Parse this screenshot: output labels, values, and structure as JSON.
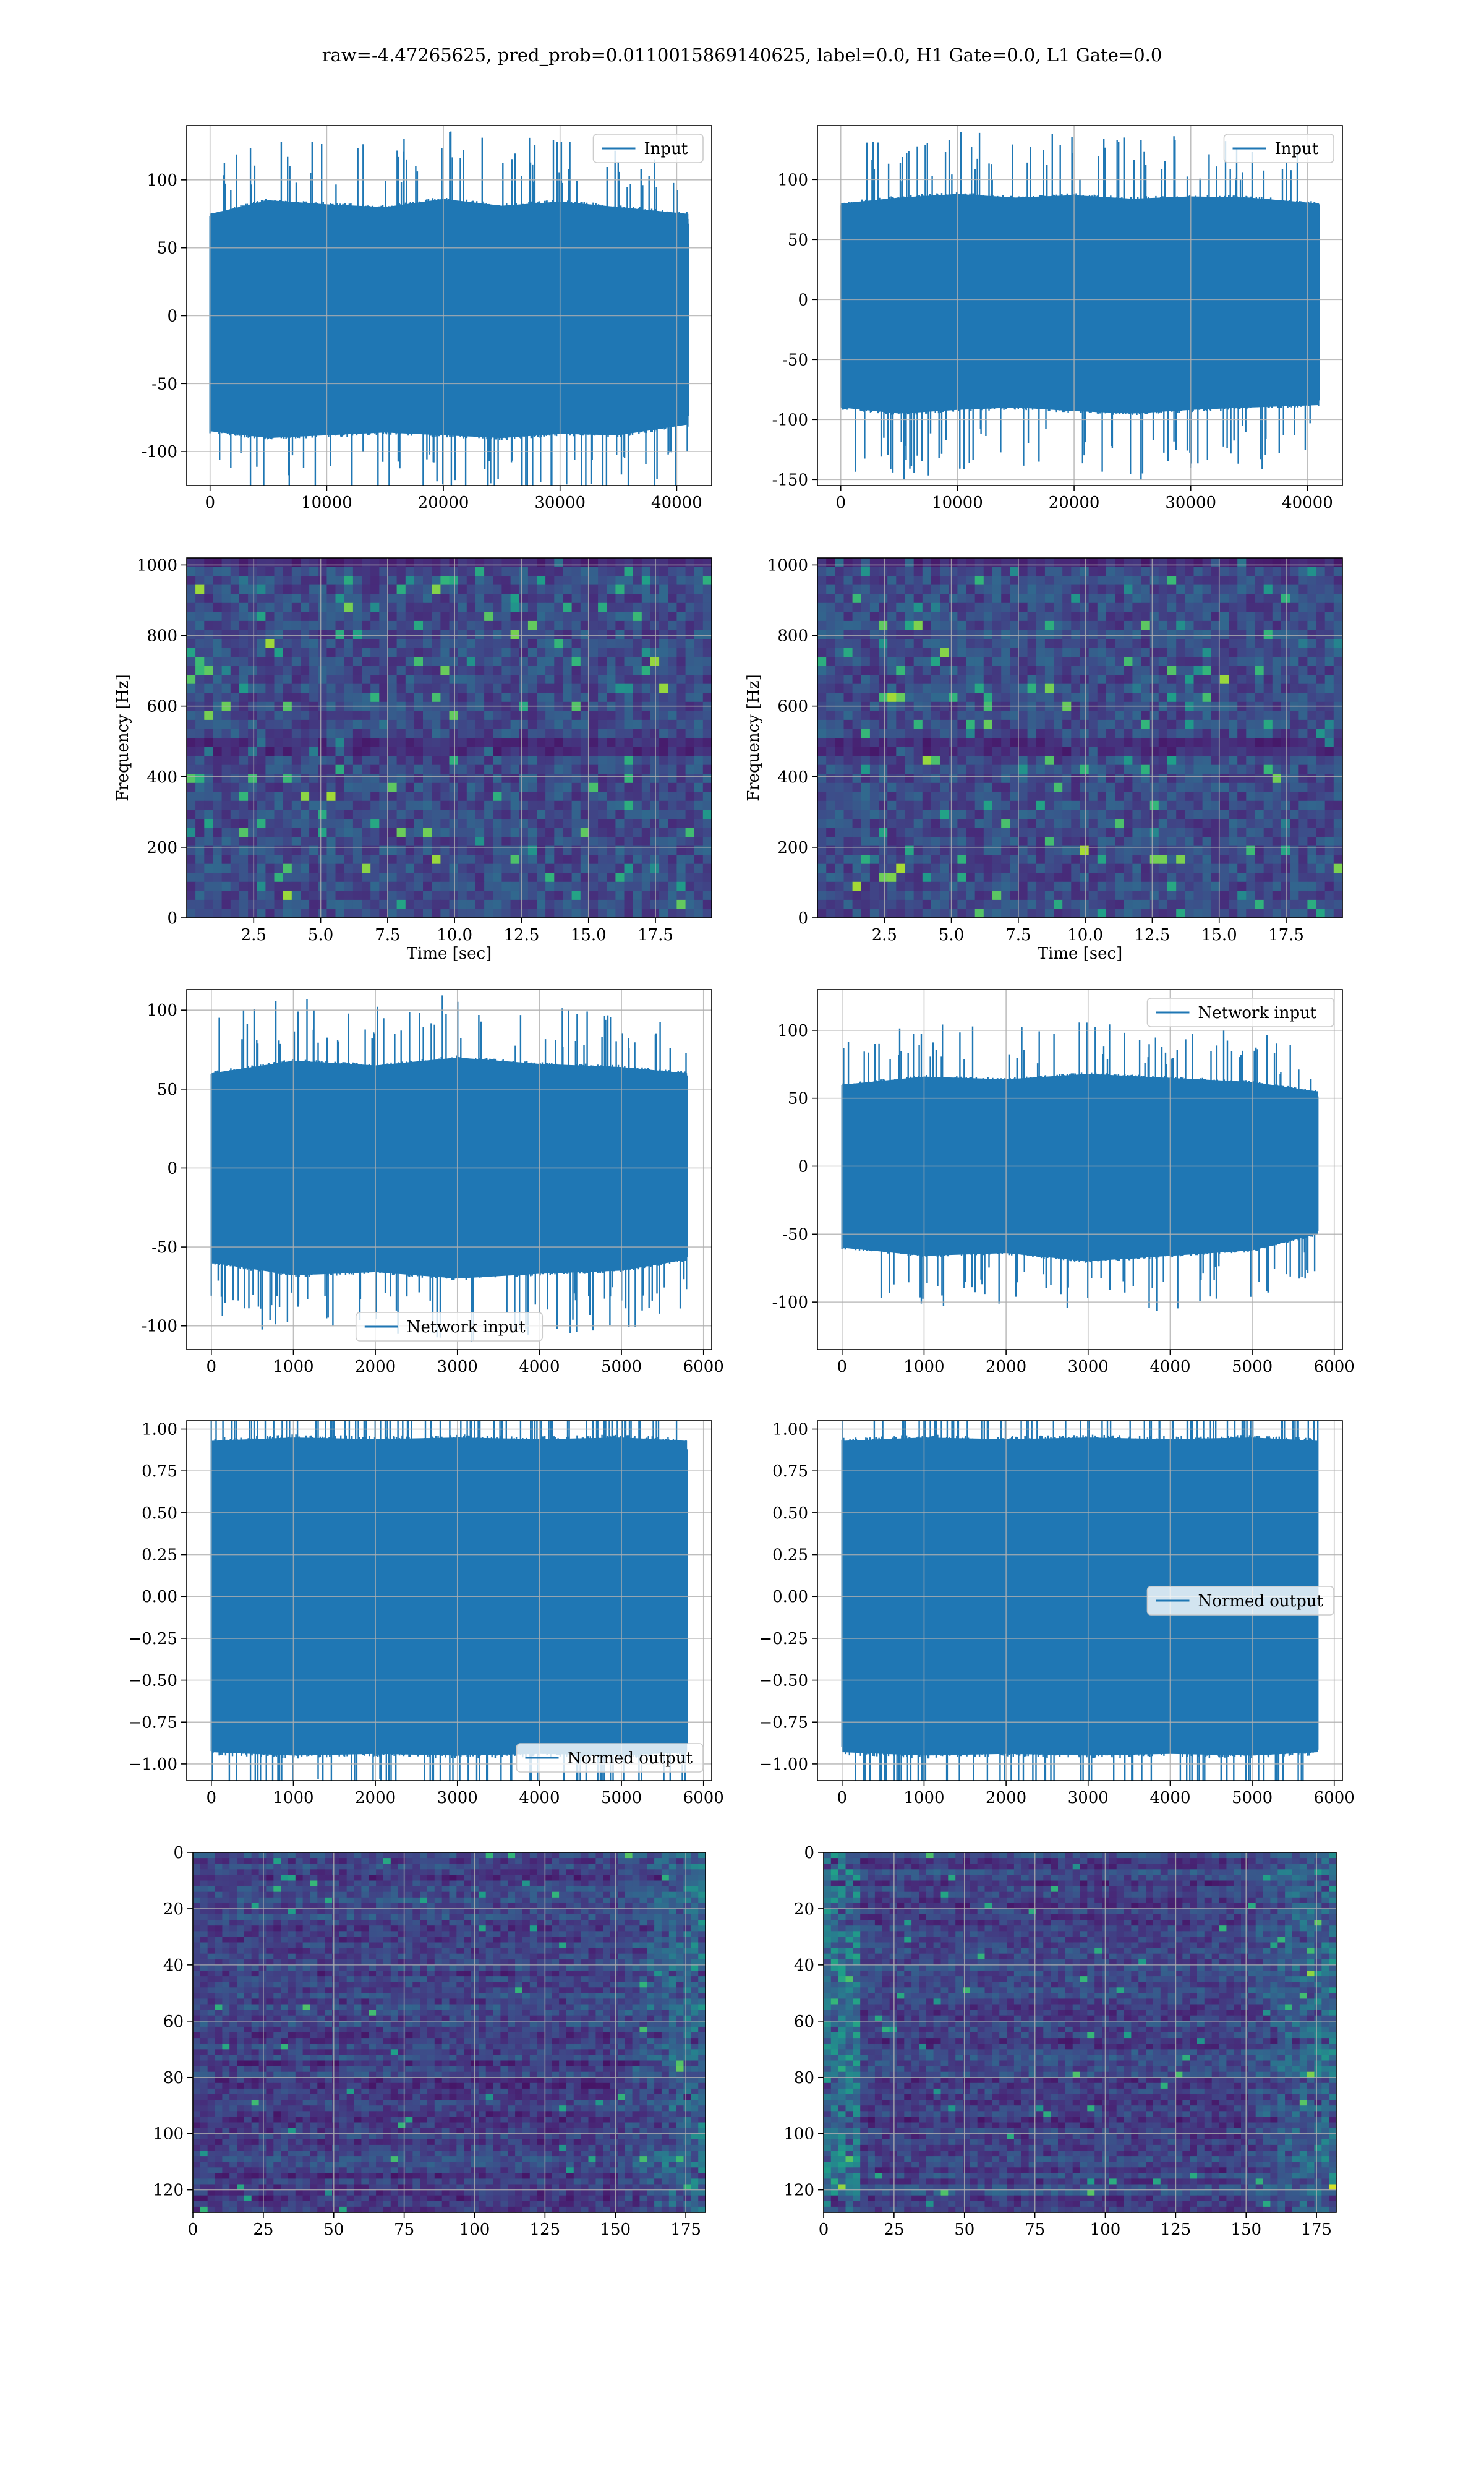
{
  "title": "raw=-4.47265625, pred_prob=0.0110015869140625, label=0.0, H1 Gate=0.0, L1 Gate=0.0",
  "colors": {
    "series": "#1f77b4",
    "grid": "#b0b0b0",
    "heatmap_low": "#440154",
    "heatmap_high": "#fde725"
  },
  "chart_data": [
    {
      "type": "line",
      "row": 1,
      "col": 1,
      "series": [
        {
          "name": "Input",
          "envelope": {
            "x": [
              0,
              5000,
              10000,
              15000,
              20000,
              25000,
              30000,
              35000,
              41000
            ],
            "upper": [
              75,
              85,
              82,
              80,
              86,
              81,
              84,
              80,
              75
            ],
            "lower": [
              -85,
              -90,
              -88,
              -86,
              -88,
              -90,
              -87,
              -88,
              -80
            ]
          }
        }
      ],
      "xlim": [
        -2000,
        43000
      ],
      "ylim": [
        -125,
        140
      ],
      "xticks": [
        0,
        10000,
        20000,
        30000,
        40000
      ],
      "yticks": [
        -100,
        -50,
        0,
        50,
        100
      ],
      "legend": "upper right",
      "grid": true,
      "xlabel": "",
      "ylabel": ""
    },
    {
      "type": "line",
      "row": 1,
      "col": 2,
      "series": [
        {
          "name": "Input",
          "envelope": {
            "x": [
              0,
              5000,
              10000,
              15000,
              20000,
              25000,
              30000,
              35000,
              41000
            ],
            "upper": [
              80,
              85,
              88,
              85,
              87,
              84,
              86,
              85,
              80
            ],
            "lower": [
              -90,
              -95,
              -92,
              -90,
              -93,
              -95,
              -92,
              -90,
              -88
            ]
          }
        }
      ],
      "xlim": [
        -2000,
        43000
      ],
      "ylim": [
        -155,
        145
      ],
      "xticks": [
        0,
        10000,
        20000,
        30000,
        40000
      ],
      "yticks": [
        -150,
        -100,
        -50,
        0,
        50,
        100
      ],
      "legend": "upper right",
      "grid": true,
      "xlabel": "",
      "ylabel": ""
    },
    {
      "type": "heatmap",
      "row": 2,
      "col": 1,
      "xlim": [
        0,
        19.6
      ],
      "ylim": [
        0,
        1020
      ],
      "xticks": [
        2.5,
        5.0,
        7.5,
        10.0,
        12.5,
        15.0,
        17.5
      ],
      "yticks": [
        0,
        200,
        400,
        600,
        800,
        1000
      ],
      "xlabel": "Time [sec]",
      "ylabel": "Frequency [Hz]",
      "grid": true,
      "colormap": "viridis"
    },
    {
      "type": "heatmap",
      "row": 2,
      "col": 2,
      "xlim": [
        0,
        19.6
      ],
      "ylim": [
        0,
        1020
      ],
      "xticks": [
        2.5,
        5.0,
        7.5,
        10.0,
        12.5,
        15.0,
        17.5
      ],
      "yticks": [
        0,
        200,
        400,
        600,
        800,
        1000
      ],
      "xlabel": "Time [sec]",
      "ylabel": "Frequency [Hz]",
      "grid": true,
      "colormap": "viridis"
    },
    {
      "type": "line",
      "row": 3,
      "col": 1,
      "series": [
        {
          "name": "Network input",
          "envelope": {
            "x": [
              0,
              1000,
              2000,
              3000,
              4000,
              5000,
              5800
            ],
            "upper": [
              60,
              68,
              65,
              70,
              66,
              64,
              60
            ],
            "lower": [
              -60,
              -68,
              -66,
              -70,
              -67,
              -65,
              -58
            ]
          }
        }
      ],
      "xlim": [
        -300,
        6100
      ],
      "ylim": [
        -115,
        113
      ],
      "xticks": [
        0,
        1000,
        2000,
        3000,
        4000,
        5000,
        6000
      ],
      "yticks": [
        -100,
        -50,
        0,
        50,
        100
      ],
      "legend": "lower center",
      "grid": true,
      "xlabel": "",
      "ylabel": ""
    },
    {
      "type": "line",
      "row": 3,
      "col": 2,
      "series": [
        {
          "name": "Network input",
          "envelope": {
            "x": [
              0,
              1000,
              2000,
              3000,
              4000,
              5000,
              5800
            ],
            "upper": [
              60,
              66,
              64,
              68,
              65,
              62,
              55
            ],
            "lower": [
              -60,
              -66,
              -64,
              -70,
              -66,
              -62,
              -50
            ]
          }
        }
      ],
      "xlim": [
        -300,
        6100
      ],
      "ylim": [
        -135,
        130
      ],
      "xticks": [
        0,
        1000,
        2000,
        3000,
        4000,
        5000,
        6000
      ],
      "yticks": [
        -100,
        -50,
        0,
        50,
        100
      ],
      "legend": "upper right",
      "grid": true,
      "xlabel": "",
      "ylabel": ""
    },
    {
      "type": "line",
      "row": 4,
      "col": 1,
      "series": [
        {
          "name": "Normed output",
          "envelope": {
            "x": [
              0,
              1000,
              2000,
              3000,
              4000,
              5000,
              5800
            ],
            "upper": [
              0.93,
              0.95,
              0.94,
              0.95,
              0.94,
              0.95,
              0.93
            ],
            "lower": [
              -0.93,
              -0.95,
              -0.94,
              -0.95,
              -0.94,
              -0.95,
              -0.93
            ]
          }
        }
      ],
      "xlim": [
        -300,
        6100
      ],
      "ylim": [
        -1.1,
        1.05
      ],
      "xticks": [
        0,
        1000,
        2000,
        3000,
        4000,
        5000,
        6000
      ],
      "yticks": [
        -1.0,
        -0.75,
        -0.5,
        -0.25,
        0.0,
        0.25,
        0.5,
        0.75,
        1.0
      ],
      "legend": "lower right",
      "grid": true,
      "xlabel": "",
      "ylabel": ""
    },
    {
      "type": "line",
      "row": 4,
      "col": 2,
      "series": [
        {
          "name": "Normed output",
          "envelope": {
            "x": [
              0,
              1000,
              2000,
              3000,
              4000,
              5000,
              5800
            ],
            "upper": [
              0.93,
              0.95,
              0.94,
              0.95,
              0.94,
              0.95,
              0.93
            ],
            "lower": [
              -0.93,
              -0.95,
              -0.94,
              -0.95,
              -0.94,
              -0.95,
              -0.93
            ]
          }
        }
      ],
      "xlim": [
        -300,
        6100
      ],
      "ylim": [
        -1.1,
        1.05
      ],
      "xticks": [
        0,
        1000,
        2000,
        3000,
        4000,
        5000,
        6000
      ],
      "yticks": [
        -1.0,
        -0.75,
        -0.5,
        -0.25,
        0.0,
        0.25,
        0.5,
        0.75,
        1.0
      ],
      "legend": "center right",
      "grid": true,
      "xlabel": "",
      "ylabel": ""
    },
    {
      "type": "heatmap",
      "row": 5,
      "col": 1,
      "xlim": [
        0,
        182
      ],
      "ylim": [
        128,
        0
      ],
      "xticks": [
        0,
        25,
        50,
        75,
        100,
        125,
        150,
        175
      ],
      "yticks": [
        0,
        20,
        40,
        60,
        80,
        100,
        120
      ],
      "xlabel": "",
      "ylabel": "",
      "grid": true,
      "colormap": "viridis"
    },
    {
      "type": "heatmap",
      "row": 5,
      "col": 2,
      "xlim": [
        0,
        182
      ],
      "ylim": [
        128,
        0
      ],
      "xticks": [
        0,
        25,
        50,
        75,
        100,
        125,
        150,
        175
      ],
      "yticks": [
        0,
        20,
        40,
        60,
        80,
        100,
        120
      ],
      "xlabel": "",
      "ylabel": "",
      "grid": true,
      "colormap": "viridis"
    }
  ]
}
